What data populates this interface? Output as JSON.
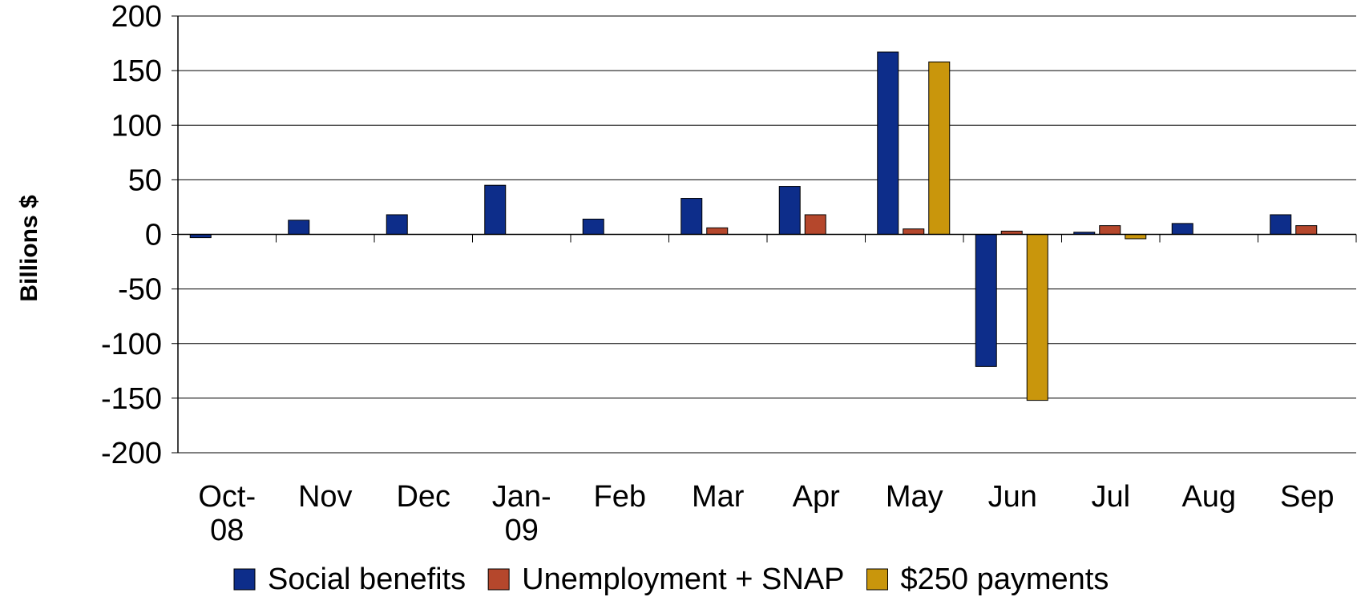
{
  "chart_data": {
    "type": "bar",
    "title": "",
    "xlabel": "",
    "ylabel": "Billions $",
    "ylim": [
      -200,
      200
    ],
    "yticks": [
      200,
      150,
      100,
      50,
      0,
      -50,
      -100,
      -150,
      -200
    ],
    "grid": true,
    "legend_position": "bottom",
    "categories": [
      "Oct-08",
      "Nov",
      "Dec",
      "Jan-09",
      "Feb",
      "Mar",
      "Apr",
      "May",
      "Jun",
      "Jul",
      "Aug",
      "Sep"
    ],
    "series": [
      {
        "name": "Social benefits",
        "color": "#0d2d8a",
        "values": [
          -3,
          13,
          18,
          45,
          14,
          33,
          44,
          167,
          -121,
          2,
          10,
          18
        ]
      },
      {
        "name": "Unemployment + SNAP",
        "color": "#b5472c",
        "values": [
          0,
          0,
          0,
          0,
          0,
          6,
          18,
          5,
          3,
          8,
          0,
          8
        ]
      },
      {
        "name": "$250 payments",
        "color": "#c9960c",
        "values": [
          0,
          0,
          0,
          0,
          0,
          0,
          0,
          158,
          -152,
          -4,
          0,
          0
        ]
      }
    ]
  }
}
